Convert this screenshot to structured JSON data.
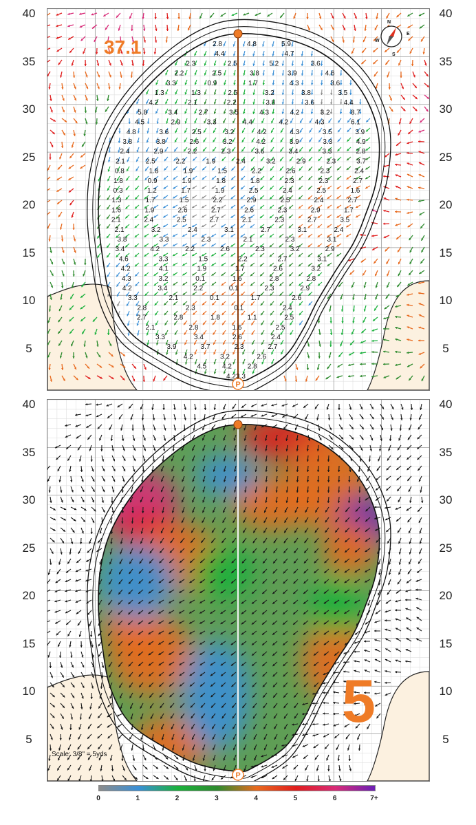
{
  "axis": {
    "y_labels": [
      "40",
      "35",
      "30",
      "25",
      "20",
      "15",
      "10",
      "5"
    ]
  },
  "top_panel": {
    "green_length": "37.1",
    "compass": {
      "n": "N",
      "e": "E",
      "s": "S",
      "w": "W"
    },
    "slope_readings": [
      [
        "2.8",
        "4.8",
        "5.9"
      ],
      [
        "4.4",
        "4.7"
      ],
      [
        "2.3",
        "2.5",
        "5.2",
        "3.6"
      ],
      [
        "2.2",
        "2.5",
        "3.8",
        "3.9",
        "4.6"
      ],
      [
        "3.3",
        "0.9",
        "1.7",
        "4.3",
        "3.6"
      ],
      [
        "1.3",
        "1.3",
        "2.5",
        "3.2",
        "3.8",
        "3.5"
      ],
      [
        "4.2",
        "2.1",
        "2.2",
        "3.8",
        "3.6",
        "4.4"
      ],
      [
        "5.8",
        "3.4",
        "2.7",
        "3.5",
        "4.3",
        "4.2",
        "3.2",
        "8.7"
      ],
      [
        "4.5",
        "2.9",
        "3.3",
        "4.4",
        "4.2",
        "4.3",
        "6.1"
      ],
      [
        "4.8",
        "3.6",
        "2.5",
        "3.2",
        "4.2",
        "4.3",
        "3.5",
        "3.9"
      ],
      [
        "3.8",
        "3.8",
        "2.6",
        "3.2",
        "4.2",
        "3.9",
        "3.3",
        "4.9"
      ],
      [
        "2.4",
        "2.9",
        "2.2",
        "2.3",
        "3.6",
        "3.4",
        "3.3",
        "2.8"
      ],
      [
        "2.1",
        "2.5",
        "2.2",
        "1.9",
        "2.4",
        "3.2",
        "2.9",
        "2.3",
        "3.7"
      ],
      [
        "0.8",
        "1.8",
        "1.9",
        "1.5",
        "2.2",
        "2.6",
        "2.3",
        "2.4"
      ],
      [
        "1.8",
        "0.9",
        "1.9",
        "1.8",
        "1.8",
        "2.3",
        "2.3",
        "2.7"
      ],
      [
        "0.3",
        "1.2",
        "1.7",
        "1.9",
        "2.5",
        "2.4",
        "2.5",
        "1.6"
      ],
      [
        "1.3",
        "1.7",
        "1.5",
        "2.2",
        "2.9",
        "2.5",
        "2.4",
        "2.7"
      ],
      [
        "1.6",
        "1.9",
        "2.6",
        "2.7",
        "2.6",
        "2.3",
        "2.9",
        "1.7"
      ],
      [
        "2.1",
        "2.4",
        "2.5",
        "2.7",
        "2.1",
        "2.3",
        "2.7",
        "3.5"
      ],
      [
        "2.1",
        "3.2",
        "2.4",
        "3.1",
        "2.7",
        "3.1",
        "2.4"
      ],
      [
        "3.8",
        "3.3",
        "2.3",
        "2.1",
        "2.3",
        "3.1"
      ],
      [
        "3.4",
        "4.2",
        "2.2",
        "2.6",
        "2.3",
        "3.2",
        "2.9"
      ],
      [
        "4.6",
        "3.3",
        "1.5",
        "2.2",
        "2.7",
        "3.1"
      ],
      [
        "4.2",
        "4.1",
        "1.9",
        "1.7",
        "2.6",
        "3.2"
      ],
      [
        "4.3",
        "3.2",
        "0.1",
        "1.6",
        "2.8",
        "2.8"
      ],
      [
        "4.2",
        "3.4",
        "2.2",
        "0.1",
        "2.3",
        "2.9"
      ],
      [
        "3.3",
        "2.1",
        "0.1",
        "1.7",
        "2.6"
      ],
      [
        "2.8",
        "2.3",
        "0.1",
        "2.4"
      ],
      [
        "2.7",
        "2.8",
        "1.8",
        "1.1",
        "2.5"
      ],
      [
        "2.1",
        "2.8",
        "1.6",
        "2.5"
      ],
      [
        "3.3",
        "3.4",
        "2.6",
        "2.4"
      ],
      [
        "3.9",
        "3.7",
        "2.3",
        "2.7"
      ],
      [
        "4.2",
        "3.2",
        "2.6"
      ],
      [
        "4.5",
        "4.2",
        "2.8"
      ],
      [
        "4.2",
        "3.3"
      ]
    ]
  },
  "bottom_panel": {
    "hole_number": "5",
    "scale_note": "Scale: 3/8\" = 5yds"
  },
  "legend": {
    "ticks": [
      "0",
      "1",
      "2",
      "3",
      "4",
      "5",
      "6",
      "7+"
    ],
    "colors": [
      "#8c8c8c",
      "#3a8fd6",
      "#1bb13c",
      "#2e8b2e",
      "#e86a1e",
      "#e01e1e",
      "#d82b78",
      "#6b1fb5"
    ]
  },
  "colors": {
    "accent": "#ef7b26",
    "sand": "#fcf1e0",
    "grid_minor": "#d9d9d9",
    "grid_major": "#9a9a9a",
    "arrow_dark": "#1a1a1a"
  }
}
